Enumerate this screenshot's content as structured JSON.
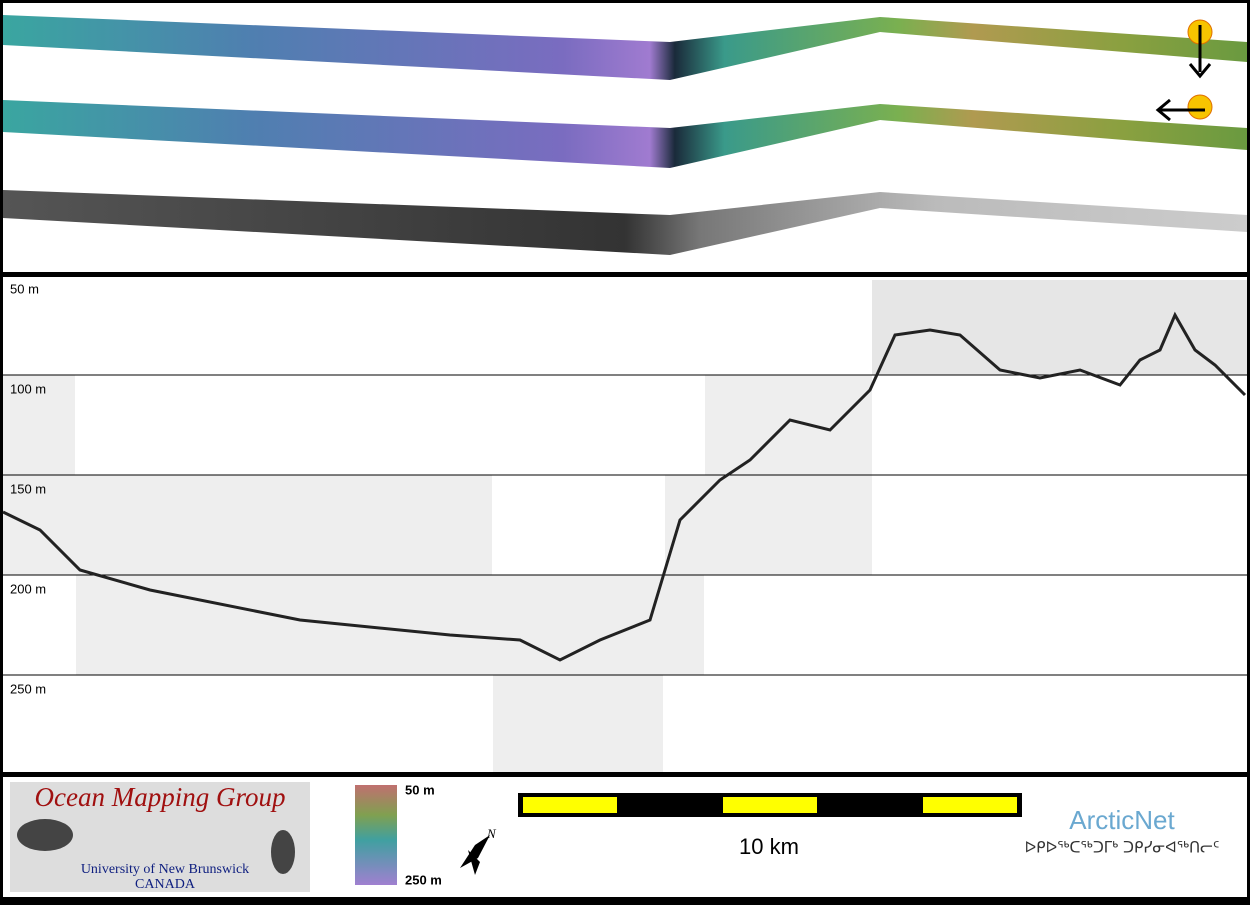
{
  "profile": {
    "depth_labels": [
      "50 m",
      "100 m",
      "150 m",
      "200 m",
      "250 m"
    ]
  },
  "legend": {
    "colorbar_top": "50 m",
    "colorbar_bottom": "250 m",
    "scale": "10 km"
  },
  "logo": {
    "title": "Ocean Mapping Group",
    "line1": "University of New Brunswick",
    "line2": "CANADA"
  },
  "partner": {
    "name": "ArcticNet",
    "syllabics": "ᐅᑭᐅᖅᑕᖅᑐᒥᒃ ᑐᑭᓯᓂᐊᖅᑎᓕᑦ"
  }
}
